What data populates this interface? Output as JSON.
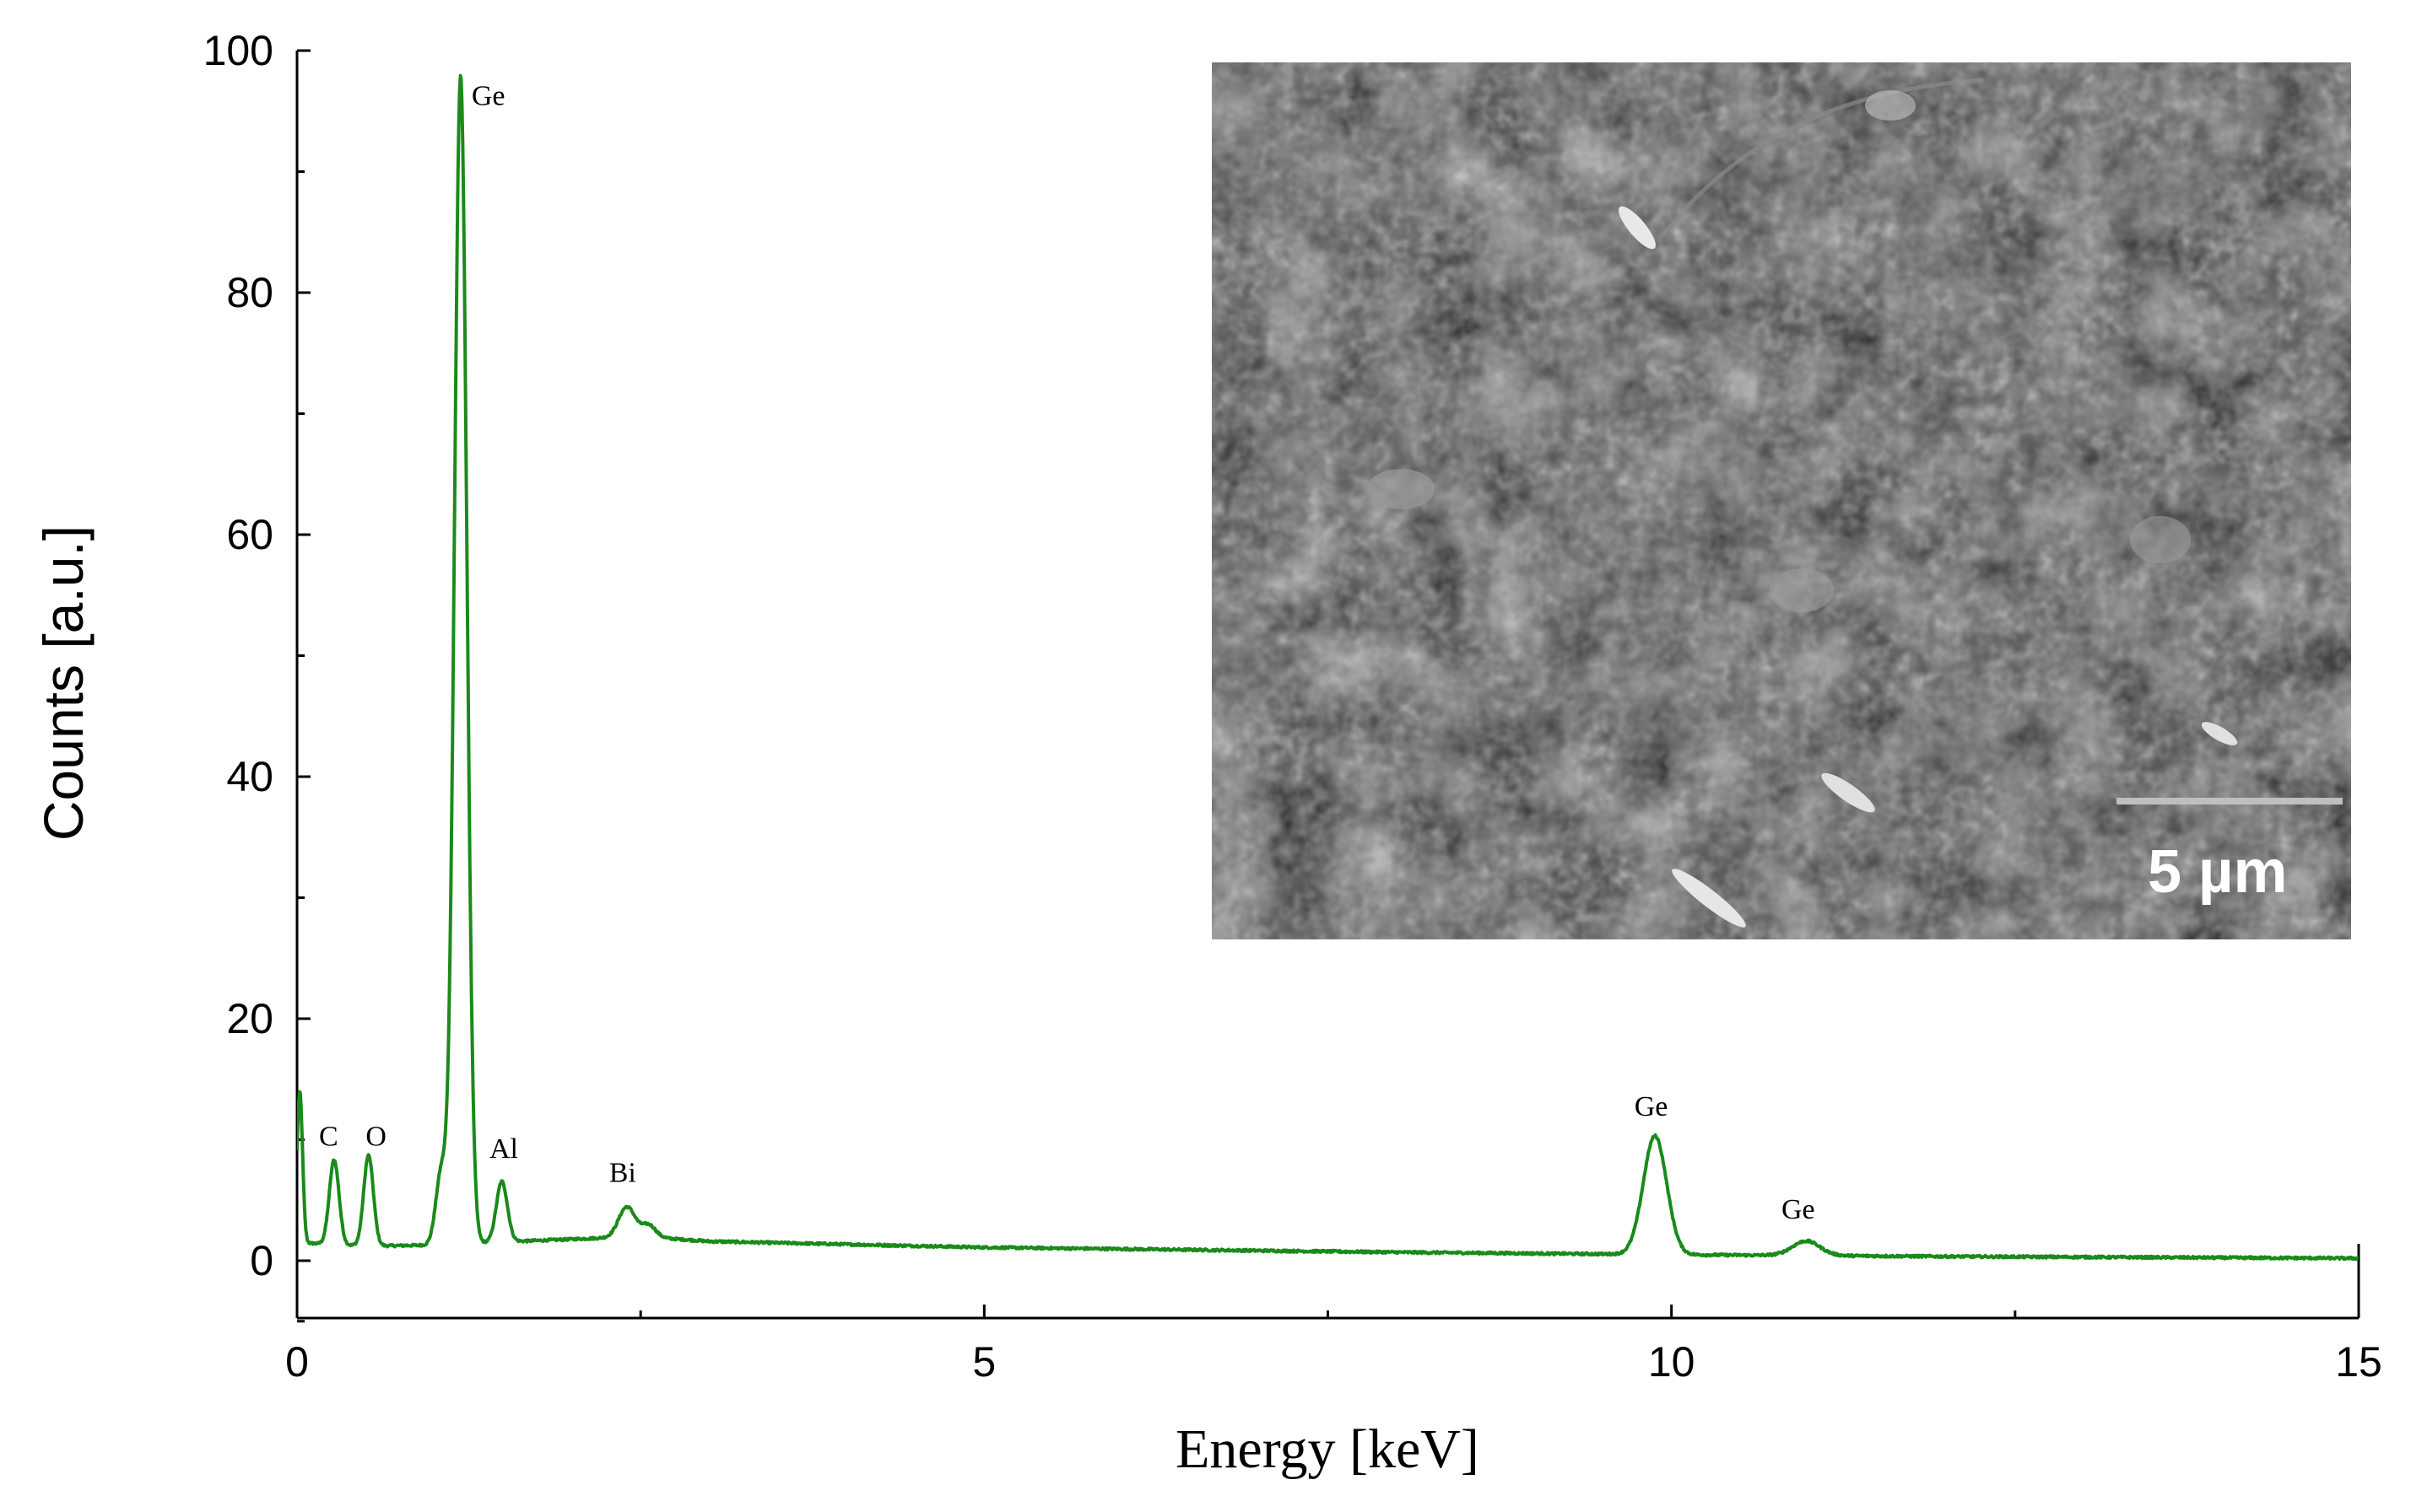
{
  "chart_data": {
    "type": "line",
    "xlabel": "Energy [keV]",
    "ylabel": "Counts [a.u.]",
    "xlim": [
      0,
      15
    ],
    "ylim": [
      -5,
      100
    ],
    "x_ticks": [
      0,
      5,
      10,
      15
    ],
    "y_ticks": [
      0,
      20,
      40,
      60,
      80,
      100
    ],
    "grid": false,
    "series": [
      {
        "color": "#1a8a1a",
        "baseline": [
          [
            0.0,
            1.5
          ],
          [
            0.5,
            1.2
          ],
          [
            1.0,
            1.3
          ],
          [
            1.6,
            1.6
          ],
          [
            2.5,
            2.0
          ],
          [
            3.0,
            1.6
          ],
          [
            5.0,
            1.1
          ],
          [
            8.0,
            0.7
          ],
          [
            10.0,
            0.5
          ],
          [
            12.0,
            0.35
          ],
          [
            15.0,
            0.2
          ]
        ],
        "peaks": [
          {
            "x": 0.02,
            "height": 12.5,
            "width": 0.02
          },
          {
            "x": 0.27,
            "height": 7.0,
            "width": 0.035
          },
          {
            "x": 0.52,
            "height": 7.5,
            "width": 0.035
          },
          {
            "x": 1.05,
            "height": 6.0,
            "width": 0.04
          },
          {
            "x": 1.19,
            "height": 96.5,
            "width": 0.045
          },
          {
            "x": 1.49,
            "height": 5.0,
            "width": 0.04
          },
          {
            "x": 2.4,
            "height": 2.5,
            "width": 0.06
          },
          {
            "x": 2.56,
            "height": 1.0,
            "width": 0.05
          },
          {
            "x": 9.88,
            "height": 9.8,
            "width": 0.085
          },
          {
            "x": 10.98,
            "height": 1.2,
            "width": 0.1
          }
        ]
      }
    ],
    "annotations": [
      {
        "text": "Ge",
        "x": 1.27,
        "y": 95.5
      },
      {
        "text": "C",
        "x": 0.16,
        "y": 9.5
      },
      {
        "text": "O",
        "x": 0.5,
        "y": 9.5
      },
      {
        "text": "Al",
        "x": 1.4,
        "y": 8.5
      },
      {
        "text": "Bi",
        "x": 2.27,
        "y": 6.5
      },
      {
        "text": "Ge",
        "x": 9.73,
        "y": 12.0
      },
      {
        "text": "Ge",
        "x": 10.8,
        "y": 3.5
      }
    ]
  },
  "inset": {
    "scale_bar_label": "5 µm"
  }
}
